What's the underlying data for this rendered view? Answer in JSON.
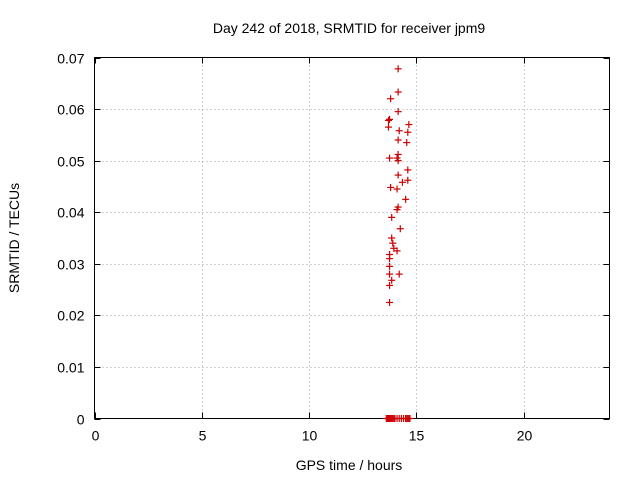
{
  "chart_data": {
    "type": "scatter",
    "title": "Day 242 of 2018, SRMTID for receiver jpm9",
    "xlabel": "GPS time / hours",
    "ylabel": "SRMTID / TECUs",
    "xlim": [
      0,
      24
    ],
    "ylim": [
      0,
      0.07
    ],
    "grid": true,
    "x_ticks": [
      0,
      5,
      10,
      15,
      20
    ],
    "x_tick_labels": [
      "0",
      "5",
      "10",
      "15",
      "20"
    ],
    "y_ticks": [
      0,
      0.01,
      0.02,
      0.03,
      0.04,
      0.05,
      0.06,
      0.07
    ],
    "y_tick_labels": [
      "0",
      "0.01",
      "0.02",
      "0.03",
      "0.04",
      "0.05",
      "0.06",
      "0.07"
    ],
    "marker_color": "#cc0000",
    "series": [
      {
        "name": "SRMTID",
        "x": [
          14.15,
          14.15,
          13.8,
          14.15,
          13.75,
          13.7,
          14.65,
          13.7,
          14.2,
          14.6,
          14.55,
          14.15,
          14.15,
          13.75,
          14.1,
          14.15,
          14.6,
          14.15,
          14.6,
          14.35,
          13.8,
          14.1,
          14.5,
          14.15,
          14.1,
          13.85,
          14.25,
          13.85,
          13.9,
          13.95,
          14.1,
          13.75,
          13.75,
          13.75,
          13.75,
          14.2,
          13.85,
          13.75,
          13.75,
          13.6,
          13.65,
          13.7,
          13.75,
          13.8,
          13.85,
          13.9,
          13.95,
          14.0,
          14.1,
          14.2,
          14.3,
          14.4,
          14.5,
          14.55,
          14.6,
          14.65,
          14.7
        ],
        "y": [
          0.0678,
          0.0633,
          0.062,
          0.0595,
          0.058,
          0.0578,
          0.057,
          0.0565,
          0.0558,
          0.0555,
          0.0535,
          0.054,
          0.0512,
          0.0505,
          0.0505,
          0.05,
          0.0482,
          0.0472,
          0.0462,
          0.0458,
          0.0448,
          0.0445,
          0.0425,
          0.041,
          0.0405,
          0.039,
          0.0368,
          0.035,
          0.034,
          0.033,
          0.0325,
          0.0318,
          0.031,
          0.0295,
          0.028,
          0.028,
          0.0268,
          0.0258,
          0.0225,
          0,
          0,
          0,
          0,
          0,
          0,
          0,
          0,
          0,
          0,
          0,
          0,
          0,
          0,
          0,
          0,
          0,
          0
        ]
      }
    ]
  }
}
